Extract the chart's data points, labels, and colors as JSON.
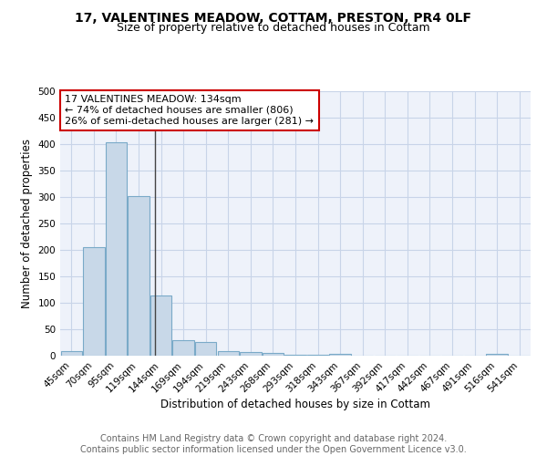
{
  "title_line1": "17, VALENTINES MEADOW, COTTAM, PRESTON, PR4 0LF",
  "title_line2": "Size of property relative to detached houses in Cottam",
  "xlabel": "Distribution of detached houses by size in Cottam",
  "ylabel": "Number of detached properties",
  "bar_labels": [
    "45sqm",
    "70sqm",
    "95sqm",
    "119sqm",
    "144sqm",
    "169sqm",
    "194sqm",
    "219sqm",
    "243sqm",
    "268sqm",
    "293sqm",
    "318sqm",
    "343sqm",
    "367sqm",
    "392sqm",
    "417sqm",
    "442sqm",
    "467sqm",
    "491sqm",
    "516sqm",
    "541sqm"
  ],
  "bar_values": [
    8,
    205,
    403,
    302,
    113,
    30,
    26,
    8,
    7,
    5,
    2,
    2,
    3,
    0,
    0,
    0,
    0,
    0,
    0,
    4,
    0
  ],
  "bar_color": "#c8d8e8",
  "bar_edge_color": "#7aaac8",
  "vline_color": "#444444",
  "annotation_text": "17 VALENTINES MEADOW: 134sqm\n← 74% of detached houses are smaller (806)\n26% of semi-detached houses are larger (281) →",
  "annotation_box_color": "#ffffff",
  "annotation_box_edge_color": "#cc0000",
  "ylim": [
    0,
    500
  ],
  "yticks": [
    0,
    50,
    100,
    150,
    200,
    250,
    300,
    350,
    400,
    450,
    500
  ],
  "grid_color": "#c8d4e8",
  "background_color": "#eef2fa",
  "footer_text": "Contains HM Land Registry data © Crown copyright and database right 2024.\nContains public sector information licensed under the Open Government Licence v3.0.",
  "title_fontsize": 10,
  "subtitle_fontsize": 9,
  "axis_label_fontsize": 8.5,
  "tick_fontsize": 7.5,
  "annotation_fontsize": 8,
  "footer_fontsize": 7
}
